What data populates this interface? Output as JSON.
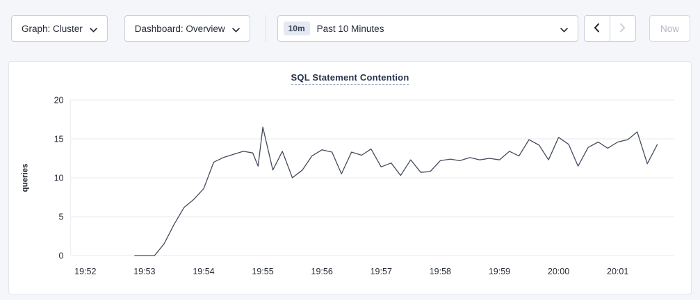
{
  "toolbar": {
    "graph_dropdown": "Graph: Cluster",
    "dashboard_dropdown": "Dashboard: Overview",
    "time_badge": "10m",
    "time_label": "Past 10 Minutes",
    "now_label": "Now"
  },
  "chart": {
    "title": "SQL Statement Contention"
  },
  "chart_data": {
    "type": "line",
    "title": "SQL Statement Contention",
    "ylabel": "queries",
    "xlabel": "",
    "ylim": [
      0,
      20
    ],
    "yticks": [
      0,
      5,
      10,
      15,
      20
    ],
    "xlim": [
      -0.25,
      9.95
    ],
    "xtick_pos": [
      0,
      1,
      2,
      3,
      4,
      5,
      6,
      7,
      8,
      9
    ],
    "xticks": [
      "19:52",
      "19:53",
      "19:54",
      "19:55",
      "19:56",
      "19:57",
      "19:58",
      "19:59",
      "20:00",
      "20:01"
    ],
    "grid": "horizontal",
    "legend": "none",
    "x": [
      0.83,
      1.0,
      1.17,
      1.33,
      1.5,
      1.67,
      1.83,
      2.0,
      2.17,
      2.33,
      2.5,
      2.67,
      2.83,
      2.92,
      3.0,
      3.17,
      3.33,
      3.5,
      3.67,
      3.83,
      4.0,
      4.17,
      4.33,
      4.5,
      4.67,
      4.83,
      5.0,
      5.17,
      5.33,
      5.5,
      5.67,
      5.83,
      6.0,
      6.17,
      6.33,
      6.5,
      6.67,
      6.83,
      7.0,
      7.17,
      7.33,
      7.5,
      7.67,
      7.83,
      8.0,
      8.17,
      8.33,
      8.5,
      8.67,
      8.83,
      9.0,
      9.17,
      9.33,
      9.5,
      9.67
    ],
    "values": [
      0,
      0,
      0,
      1.5,
      4.0,
      6.2,
      7.2,
      8.6,
      12.0,
      12.6,
      13.0,
      13.4,
      13.2,
      11.5,
      16.5,
      11.0,
      13.4,
      10.0,
      11.0,
      12.8,
      13.6,
      13.3,
      10.5,
      13.3,
      12.9,
      13.7,
      11.4,
      11.9,
      10.3,
      12.3,
      10.7,
      10.8,
      12.2,
      12.4,
      12.2,
      12.6,
      12.3,
      12.5,
      12.3,
      13.4,
      12.8,
      14.9,
      14.2,
      12.3,
      15.2,
      14.3,
      11.5,
      13.9,
      14.6,
      13.8,
      14.6,
      14.9,
      15.9,
      11.8,
      14.3
    ]
  }
}
